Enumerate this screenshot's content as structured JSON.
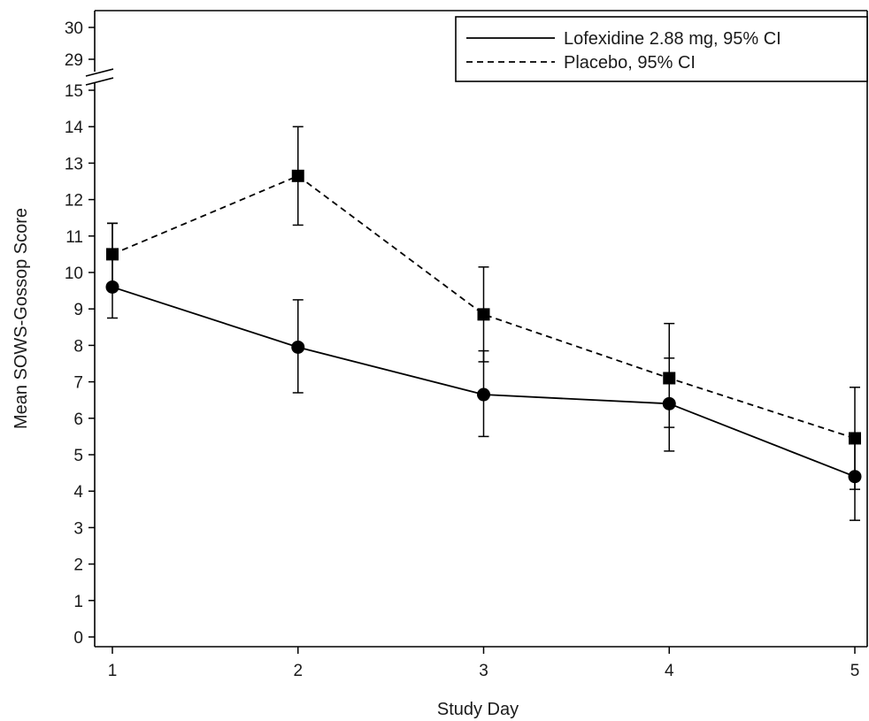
{
  "chart_data": {
    "type": "line",
    "xlabel": "Study Day",
    "ylabel": "Mean SOWS-Gossop Score",
    "x": [
      1,
      2,
      3,
      4,
      5
    ],
    "x_ticks": [
      "1",
      "2",
      "3",
      "4",
      "5"
    ],
    "y_ticks_lower": [
      "0",
      "1",
      "2",
      "3",
      "4",
      "5",
      "6",
      "7",
      "8",
      "9",
      "10",
      "11",
      "12",
      "13",
      "14",
      "15"
    ],
    "y_ticks_upper": [
      "29",
      "30"
    ],
    "ylim": [
      0,
      30
    ],
    "y_axis_break": [
      15,
      29
    ],
    "grid": false,
    "legend_position": "top-right",
    "series": [
      {
        "name": "Lofexidine 2.88 mg, 95% CI",
        "line_style": "solid",
        "marker": "circle",
        "color": "#000000",
        "values": [
          9.6,
          7.95,
          6.65,
          6.4,
          4.4
        ],
        "ci_low": [
          8.75,
          6.7,
          5.5,
          5.1,
          3.2
        ],
        "ci_high": [
          11.35,
          9.25,
          7.85,
          7.65,
          5.6
        ]
      },
      {
        "name": "Placebo, 95% CI",
        "line_style": "dashed",
        "marker": "square",
        "color": "#000000",
        "values": [
          10.5,
          12.65,
          8.85,
          7.1,
          5.45
        ],
        "ci_low": [
          9.6,
          11.3,
          7.55,
          5.75,
          4.05
        ],
        "ci_high": [
          11.35,
          14.0,
          10.15,
          8.6,
          6.85
        ]
      }
    ]
  }
}
